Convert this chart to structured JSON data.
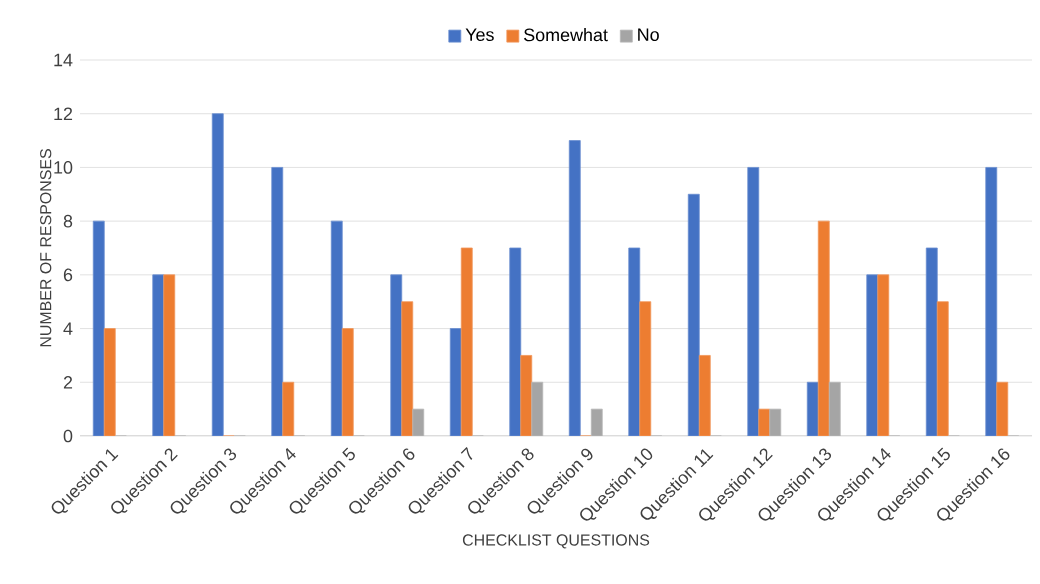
{
  "chart_data": {
    "type": "bar",
    "xlabel": "CHECKLIST QUESTIONS",
    "ylabel": "NUMBER OF RESPONSES",
    "categories": [
      "Question 1",
      "Question 2",
      "Question 3",
      "Question 4",
      "Question 5",
      "Question 6",
      "Question 7",
      "Question 8",
      "Question 9",
      "Question 10",
      "Question 11",
      "Question 12",
      "Question 13",
      "Question 14",
      "Question 15",
      "Question 16"
    ],
    "series": [
      {
        "name": "Yes",
        "color": "#4472c4",
        "values": [
          8,
          6,
          12,
          10,
          8,
          6,
          4,
          7,
          11,
          7,
          9,
          10,
          2,
          6,
          7,
          10
        ]
      },
      {
        "name": "Somewhat",
        "color": "#ed7d31",
        "values": [
          4,
          6,
          0,
          2,
          4,
          5,
          7,
          3,
          0,
          5,
          3,
          1,
          8,
          6,
          5,
          2
        ]
      },
      {
        "name": "No",
        "color": "#a5a5a5",
        "values": [
          0,
          0,
          0,
          0,
          0,
          1,
          0,
          2,
          1,
          0,
          0,
          1,
          2,
          0,
          0,
          0
        ]
      }
    ],
    "ylim": [
      0,
      14
    ],
    "yticks": [
      0,
      2,
      4,
      6,
      8,
      10,
      12,
      14
    ],
    "grid": "y",
    "legend": "top"
  }
}
